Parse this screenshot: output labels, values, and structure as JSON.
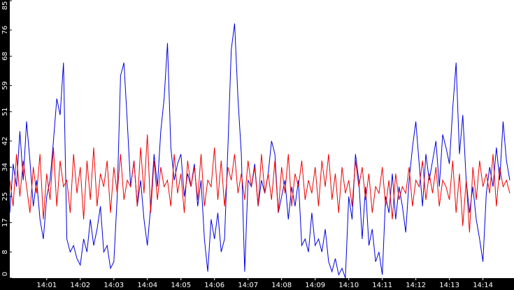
{
  "chart_data": {
    "type": "line",
    "categories": [
      null,
      null,
      null,
      null,
      null,
      null,
      null,
      null,
      null,
      null,
      null,
      "14:01",
      null,
      null,
      null,
      null,
      null,
      null,
      null,
      null,
      null,
      "14:02",
      null,
      null,
      null,
      null,
      null,
      null,
      null,
      null,
      null,
      "14:03",
      null,
      null,
      null,
      null,
      null,
      null,
      null,
      null,
      null,
      "14:04",
      null,
      null,
      null,
      null,
      null,
      null,
      null,
      null,
      null,
      "14:05",
      null,
      null,
      null,
      null,
      null,
      null,
      null,
      null,
      null,
      "14:06",
      null,
      null,
      null,
      null,
      null,
      null,
      null,
      null,
      null,
      "14:07",
      null,
      null,
      null,
      null,
      null,
      null,
      null,
      null,
      null,
      "14:08",
      null,
      null,
      null,
      null,
      null,
      null,
      null,
      null,
      null,
      "14:09",
      null,
      null,
      null,
      null,
      null,
      null,
      null,
      null,
      null,
      "14:10",
      null,
      null,
      null,
      null,
      null,
      null,
      null,
      null,
      null,
      "14:11",
      null,
      null,
      null,
      null,
      null,
      null,
      null,
      null,
      null,
      "14:12",
      null,
      null,
      null,
      null,
      null,
      null,
      null,
      null,
      null,
      "14:13",
      null,
      null,
      null,
      null,
      null,
      null,
      null,
      null,
      null,
      "14:14",
      null,
      null,
      null,
      null,
      null,
      null,
      null,
      null
    ],
    "series": [
      {
        "color": "#0000dd",
        "values": [
          20,
          35,
          28,
          45,
          30,
          48,
          36,
          22,
          30,
          18,
          12,
          25,
          30,
          42,
          55,
          50,
          66,
          12,
          8,
          10,
          6,
          4,
          12,
          8,
          18,
          10,
          15,
          22,
          8,
          10,
          3,
          5,
          25,
          62,
          66,
          48,
          28,
          36,
          22,
          30,
          18,
          10,
          22,
          38,
          28,
          45,
          55,
          72,
          40,
          30,
          35,
          38,
          25,
          32,
          28,
          35,
          22,
          30,
          12,
          2,
          18,
          12,
          20,
          8,
          12,
          40,
          70,
          78,
          55,
          38,
          2,
          30,
          28,
          35,
          22,
          30,
          26,
          32,
          42,
          38,
          20,
          25,
          30,
          18,
          28,
          22,
          30,
          10,
          12,
          8,
          20,
          10,
          12,
          8,
          15,
          5,
          2,
          6,
          1,
          3,
          0,
          25,
          18,
          38,
          30,
          12,
          28,
          10,
          15,
          5,
          8,
          1,
          25,
          20,
          32,
          18,
          28,
          22,
          14,
          30,
          40,
          48,
          35,
          22,
          38,
          30,
          36,
          42,
          28,
          44,
          40,
          35,
          52,
          66,
          38,
          50,
          30,
          20,
          28,
          18,
          12,
          5,
          26,
          34,
          28,
          40,
          30,
          48,
          36,
          30
        ]
      },
      {
        "color": "#ee0000",
        "values": [
          30,
          22,
          38,
          25,
          36,
          28,
          20,
          34,
          26,
          38,
          18,
          32,
          24,
          40,
          22,
          36,
          28,
          30,
          20,
          38,
          26,
          34,
          18,
          36,
          24,
          40,
          22,
          32,
          28,
          36,
          20,
          34,
          26,
          38,
          24,
          30,
          28,
          36,
          22,
          40,
          26,
          44,
          20,
          36,
          24,
          34,
          28,
          30,
          22,
          38,
          26,
          32,
          20,
          36,
          28,
          34,
          24,
          38,
          22,
          30,
          28,
          40,
          24,
          36,
          22,
          34,
          30,
          38,
          26,
          32,
          24,
          36,
          28,
          34,
          22,
          38,
          26,
          32,
          24,
          36,
          20,
          34,
          26,
          38,
          22,
          32,
          28,
          36,
          24,
          30,
          26,
          34,
          22,
          36,
          28,
          38,
          24,
          32,
          20,
          34,
          26,
          30,
          22,
          36,
          28,
          34,
          24,
          32,
          20,
          28,
          26,
          34,
          22,
          30,
          18,
          32,
          24,
          28,
          26,
          34,
          22,
          30,
          28,
          36,
          24,
          32,
          26,
          34,
          22,
          30,
          28,
          24,
          36,
          20,
          32,
          16,
          30,
          14,
          34,
          24,
          36,
          28,
          32,
          26,
          38,
          22,
          34,
          28,
          30,
          26
        ]
      }
    ],
    "ylim": [
      0,
      85
    ],
    "yticks": [
      0,
      8,
      17,
      25,
      34,
      42,
      51,
      59,
      68,
      76,
      85
    ]
  }
}
